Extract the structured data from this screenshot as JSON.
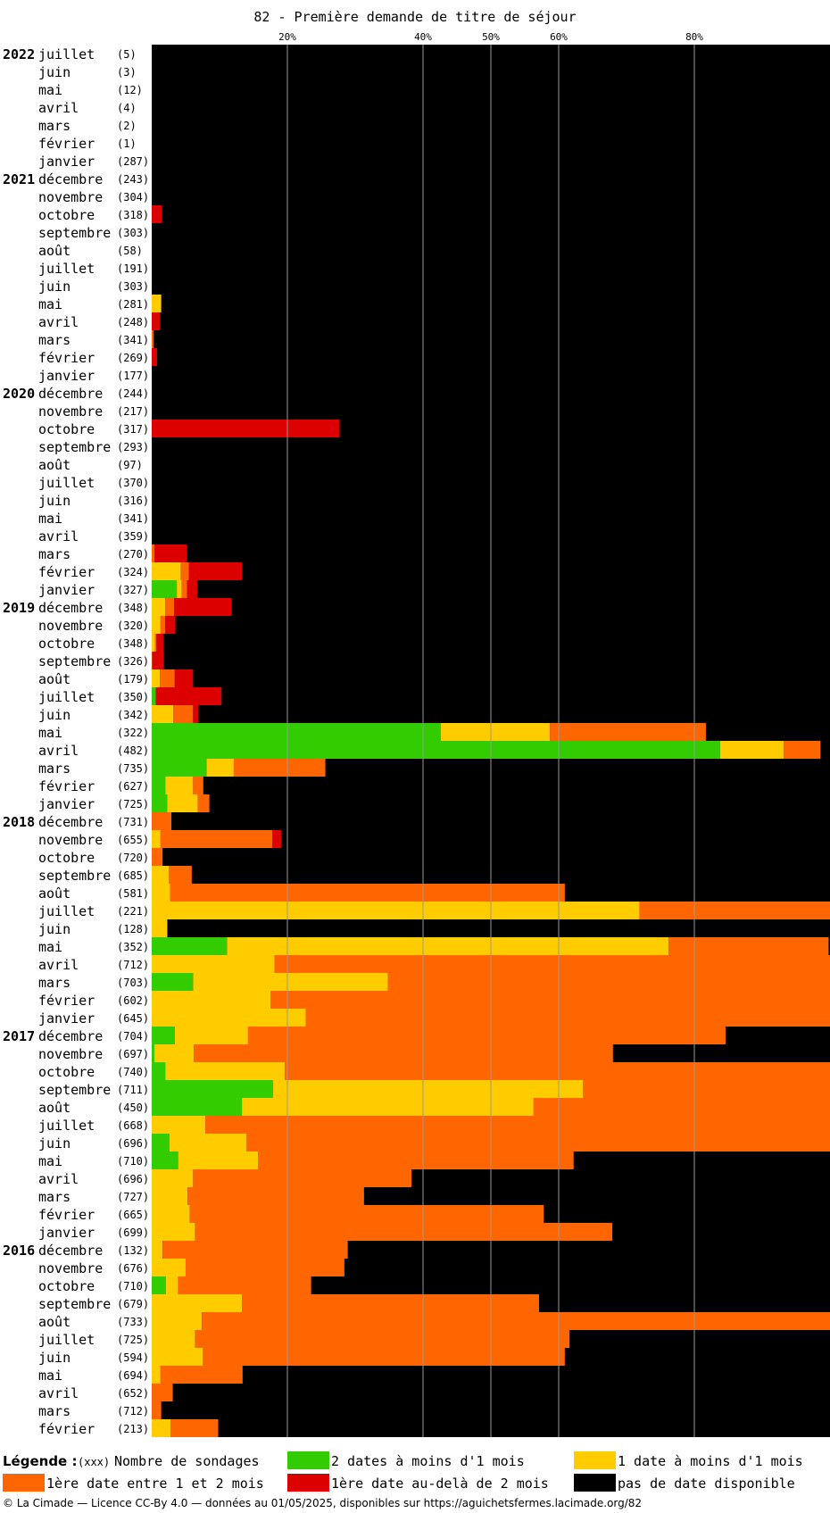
{
  "chart_data": {
    "type": "bar",
    "title": "82 - Première demande de titre de séjour",
    "x_ticks": [
      20,
      40,
      50,
      60,
      80
    ],
    "x_tick_suffix": "%",
    "xlim": [
      0,
      100
    ],
    "stack_order": [
      "green",
      "yellow",
      "orange",
      "red",
      "black"
    ],
    "colors": {
      "green": "#33cc00",
      "yellow": "#ffcc00",
      "orange": "#ff6600",
      "red": "#dd0000",
      "black": "#000000"
    },
    "legend": {
      "title": "Légende :",
      "count_marker": "(xxx)",
      "count_label": "Nombre de sondages",
      "green": "2 dates à moins d'1 mois",
      "yellow": "1 date à moins d'1 mois",
      "orange": "1ère date entre 1 et 2 mois",
      "red": "1ère date au-delà de 2 mois",
      "black": "pas de date disponible"
    },
    "rows": [
      {
        "year": "2022",
        "month": "juillet",
        "count": "(5)",
        "green": 0,
        "yellow": 0,
        "orange": 0,
        "red": 0
      },
      {
        "year": "",
        "month": "juin",
        "count": "(3)",
        "green": 0,
        "yellow": 0,
        "orange": 0,
        "red": 0
      },
      {
        "year": "",
        "month": "mai",
        "count": "(12)",
        "green": 0,
        "yellow": 0,
        "orange": 0,
        "red": 0
      },
      {
        "year": "",
        "month": "avril",
        "count": "(4)",
        "green": 0,
        "yellow": 0,
        "orange": 0,
        "red": 0
      },
      {
        "year": "",
        "month": "mars",
        "count": "(2)",
        "green": 0,
        "yellow": 0,
        "orange": 0,
        "red": 0
      },
      {
        "year": "",
        "month": "février",
        "count": "(1)",
        "green": 0,
        "yellow": 0,
        "orange": 0,
        "red": 0
      },
      {
        "year": "",
        "month": "janvier",
        "count": "(287)",
        "green": 0,
        "yellow": 0,
        "orange": 0,
        "red": 0
      },
      {
        "year": "2021",
        "month": "décembre",
        "count": "(243)",
        "green": 0,
        "yellow": 0,
        "orange": 0,
        "red": 0
      },
      {
        "year": "",
        "month": "novembre",
        "count": "(304)",
        "green": 0,
        "yellow": 0,
        "orange": 0,
        "red": 0
      },
      {
        "year": "",
        "month": "octobre",
        "count": "(318)",
        "green": 0,
        "yellow": 0,
        "orange": 0,
        "red": 1.5
      },
      {
        "year": "",
        "month": "septembre",
        "count": "(303)",
        "green": 0,
        "yellow": 0,
        "orange": 0,
        "red": 0
      },
      {
        "year": "",
        "month": "août",
        "count": "(58)",
        "green": 0,
        "yellow": 0,
        "orange": 0,
        "red": 0
      },
      {
        "year": "",
        "month": "juillet",
        "count": "(191)",
        "green": 0,
        "yellow": 0,
        "orange": 0,
        "red": 0
      },
      {
        "year": "",
        "month": "juin",
        "count": "(303)",
        "green": 0,
        "yellow": 0,
        "orange": 0,
        "red": 0
      },
      {
        "year": "",
        "month": "mai",
        "count": "(281)",
        "green": 0,
        "yellow": 1.4,
        "orange": 0,
        "red": 0
      },
      {
        "year": "",
        "month": "avril",
        "count": "(248)",
        "green": 0,
        "yellow": 0,
        "orange": 0,
        "red": 1.2
      },
      {
        "year": "",
        "month": "mars",
        "count": "(341)",
        "green": 0,
        "yellow": 0,
        "orange": 0.3,
        "red": 0
      },
      {
        "year": "",
        "month": "février",
        "count": "(269)",
        "green": 0,
        "yellow": 0,
        "orange": 0,
        "red": 0.8
      },
      {
        "year": "",
        "month": "janvier",
        "count": "(177)",
        "green": 0,
        "yellow": 0,
        "orange": 0,
        "red": 0
      },
      {
        "year": "2020",
        "month": "décembre",
        "count": "(244)",
        "green": 0,
        "yellow": 0,
        "orange": 0,
        "red": 0
      },
      {
        "year": "",
        "month": "novembre",
        "count": "(217)",
        "green": 0,
        "yellow": 0,
        "orange": 0,
        "red": 0
      },
      {
        "year": "",
        "month": "octobre",
        "count": "(317)",
        "green": 0,
        "yellow": 0,
        "orange": 0,
        "red": 27.7
      },
      {
        "year": "",
        "month": "septembre",
        "count": "(293)",
        "green": 0,
        "yellow": 0,
        "orange": 0,
        "red": 0
      },
      {
        "year": "",
        "month": "août",
        "count": "(97)",
        "green": 0,
        "yellow": 0,
        "orange": 0,
        "red": 0
      },
      {
        "year": "",
        "month": "juillet",
        "count": "(370)",
        "green": 0,
        "yellow": 0,
        "orange": 0,
        "red": 0
      },
      {
        "year": "",
        "month": "juin",
        "count": "(316)",
        "green": 0,
        "yellow": 0,
        "orange": 0,
        "red": 0
      },
      {
        "year": "",
        "month": "mai",
        "count": "(341)",
        "green": 0,
        "yellow": 0,
        "orange": 0,
        "red": 0
      },
      {
        "year": "",
        "month": "avril",
        "count": "(359)",
        "green": 0,
        "yellow": 0,
        "orange": 0,
        "red": 0
      },
      {
        "year": "",
        "month": "mars",
        "count": "(270)",
        "green": 0,
        "yellow": 0,
        "orange": 0.4,
        "red": 4.8
      },
      {
        "year": "",
        "month": "février",
        "count": "(324)",
        "green": 0,
        "yellow": 4.3,
        "orange": 1.2,
        "red": 7.8
      },
      {
        "year": "",
        "month": "janvier",
        "count": "(327)",
        "green": 3.7,
        "yellow": 0.7,
        "orange": 0.8,
        "red": 1.5
      },
      {
        "year": "2019",
        "month": "décembre",
        "count": "(348)",
        "green": 0,
        "yellow": 2.0,
        "orange": 1.3,
        "red": 8.5
      },
      {
        "year": "",
        "month": "novembre",
        "count": "(320)",
        "green": 0,
        "yellow": 1.3,
        "orange": 0.7,
        "red": 1.5
      },
      {
        "year": "",
        "month": "octobre",
        "count": "(348)",
        "green": 0,
        "yellow": 0.5,
        "orange": 0.2,
        "red": 1.0
      },
      {
        "year": "",
        "month": "septembre",
        "count": "(326)",
        "green": 0,
        "yellow": 0,
        "orange": 0.1,
        "red": 1.7
      },
      {
        "year": "",
        "month": "août",
        "count": "(179)",
        "green": 0,
        "yellow": 1.2,
        "orange": 2.2,
        "red": 2.7
      },
      {
        "year": "",
        "month": "juillet",
        "count": "(350)",
        "green": 0.6,
        "yellow": 0,
        "orange": 0,
        "red": 9.7
      },
      {
        "year": "",
        "month": "juin",
        "count": "(342)",
        "green": 0,
        "yellow": 3.2,
        "orange": 2.9,
        "red": 0.8
      },
      {
        "year": "",
        "month": "mai",
        "count": "(322)",
        "green": 42.6,
        "yellow": 16.1,
        "orange": 23.0,
        "red": 0
      },
      {
        "year": "",
        "month": "avril",
        "count": "(482)",
        "green": 83.8,
        "yellow": 9.4,
        "orange": 5.4,
        "red": 0
      },
      {
        "year": "",
        "month": "mars",
        "count": "(735)",
        "green": 8.1,
        "yellow": 4.0,
        "orange": 13.5,
        "red": 0
      },
      {
        "year": "",
        "month": "février",
        "count": "(627)",
        "green": 2.0,
        "yellow": 4.1,
        "orange": 1.5,
        "red": 0
      },
      {
        "year": "",
        "month": "janvier",
        "count": "(725)",
        "green": 2.3,
        "yellow": 4.5,
        "orange": 1.7,
        "red": 0
      },
      {
        "year": "2018",
        "month": "décembre",
        "count": "(731)",
        "green": 0,
        "yellow": 0,
        "orange": 2.9,
        "red": 0
      },
      {
        "year": "",
        "month": "novembre",
        "count": "(655)",
        "green": 0,
        "yellow": 1.3,
        "orange": 16.5,
        "red": 1.3
      },
      {
        "year": "",
        "month": "octobre",
        "count": "(720)",
        "green": 0,
        "yellow": 0,
        "orange": 1.6,
        "red": 0
      },
      {
        "year": "",
        "month": "septembre",
        "count": "(685)",
        "green": 0,
        "yellow": 2.5,
        "orange": 3.4,
        "red": 0
      },
      {
        "year": "",
        "month": "août",
        "count": "(581)",
        "green": 0,
        "yellow": 2.7,
        "orange": 58.2,
        "red": 0
      },
      {
        "year": "",
        "month": "juillet",
        "count": "(221)",
        "green": 0,
        "yellow": 71.9,
        "orange": 28.1,
        "red": 0
      },
      {
        "year": "",
        "month": "juin",
        "count": "(128)",
        "green": 0,
        "yellow": 2.3,
        "orange": 0,
        "red": 0
      },
      {
        "year": "",
        "month": "mai",
        "count": "(352)",
        "green": 11.1,
        "yellow": 65.1,
        "orange": 23.6,
        "red": 0
      },
      {
        "year": "",
        "month": "avril",
        "count": "(712)",
        "green": 0,
        "yellow": 18.1,
        "orange": 81.9,
        "red": 0
      },
      {
        "year": "",
        "month": "mars",
        "count": "(703)",
        "green": 6.1,
        "yellow": 28.7,
        "orange": 65.2,
        "red": 0
      },
      {
        "year": "",
        "month": "février",
        "count": "(602)",
        "green": 0,
        "yellow": 17.5,
        "orange": 82.5,
        "red": 0
      },
      {
        "year": "",
        "month": "janvier",
        "count": "(645)",
        "green": 0,
        "yellow": 22.7,
        "orange": 77.3,
        "red": 0
      },
      {
        "year": "2017",
        "month": "décembre",
        "count": "(704)",
        "green": 3.4,
        "yellow": 10.8,
        "orange": 70.4,
        "red": 0
      },
      {
        "year": "",
        "month": "novembre",
        "count": "(697)",
        "green": 0.4,
        "yellow": 5.8,
        "orange": 61.8,
        "red": 0
      },
      {
        "year": "",
        "month": "octobre",
        "count": "(740)",
        "green": 2.0,
        "yellow": 17.6,
        "orange": 80.4,
        "red": 0
      },
      {
        "year": "",
        "month": "septembre",
        "count": "(711)",
        "green": 17.9,
        "yellow": 45.7,
        "orange": 36.4,
        "red": 0
      },
      {
        "year": "",
        "month": "août",
        "count": "(450)",
        "green": 13.3,
        "yellow": 43.0,
        "orange": 43.7,
        "red": 0
      },
      {
        "year": "",
        "month": "juillet",
        "count": "(668)",
        "green": 0,
        "yellow": 7.9,
        "orange": 92.1,
        "red": 0
      },
      {
        "year": "",
        "month": "juin",
        "count": "(696)",
        "green": 2.6,
        "yellow": 11.4,
        "orange": 86.0,
        "red": 0
      },
      {
        "year": "",
        "month": "mai",
        "count": "(710)",
        "green": 3.9,
        "yellow": 11.8,
        "orange": 46.5,
        "red": 0
      },
      {
        "year": "",
        "month": "avril",
        "count": "(696)",
        "green": 0,
        "yellow": 6.1,
        "orange": 32.2,
        "red": 0
      },
      {
        "year": "",
        "month": "mars",
        "count": "(727)",
        "green": 0,
        "yellow": 5.3,
        "orange": 26.0,
        "red": 0
      },
      {
        "year": "",
        "month": "février",
        "count": "(665)",
        "green": 0,
        "yellow": 5.6,
        "orange": 52.2,
        "red": 0
      },
      {
        "year": "",
        "month": "janvier",
        "count": "(699)",
        "green": 0,
        "yellow": 6.4,
        "orange": 61.5,
        "red": 0
      },
      {
        "year": "2016",
        "month": "décembre",
        "count": "(132)",
        "green": 0,
        "yellow": 1.6,
        "orange": 27.3,
        "red": 0
      },
      {
        "year": "",
        "month": "novembre",
        "count": "(676)",
        "green": 0,
        "yellow": 5.0,
        "orange": 23.4,
        "red": 0
      },
      {
        "year": "",
        "month": "octobre",
        "count": "(710)",
        "green": 2.1,
        "yellow": 1.8,
        "orange": 19.6,
        "red": 0
      },
      {
        "year": "",
        "month": "septembre",
        "count": "(679)",
        "green": 0,
        "yellow": 13.3,
        "orange": 43.8,
        "red": 0
      },
      {
        "year": "",
        "month": "août",
        "count": "(733)",
        "green": 0,
        "yellow": 7.4,
        "orange": 92.6,
        "red": 0
      },
      {
        "year": "",
        "month": "juillet",
        "count": "(725)",
        "green": 0,
        "yellow": 6.4,
        "orange": 55.2,
        "red": 0
      },
      {
        "year": "",
        "month": "juin",
        "count": "(594)",
        "green": 0,
        "yellow": 7.5,
        "orange": 53.4,
        "red": 0
      },
      {
        "year": "",
        "month": "mai",
        "count": "(694)",
        "green": 0,
        "yellow": 1.3,
        "orange": 12.1,
        "red": 0
      },
      {
        "year": "",
        "month": "avril",
        "count": "(652)",
        "green": 0,
        "yellow": 0,
        "orange": 3.1,
        "red": 0
      },
      {
        "year": "",
        "month": "mars",
        "count": "(712)",
        "green": 0,
        "yellow": 0,
        "orange": 1.4,
        "red": 0
      },
      {
        "year": "",
        "month": "février",
        "count": "(213)",
        "green": 0,
        "yellow": 2.8,
        "orange": 7.0,
        "red": 0
      }
    ]
  },
  "footer": "© La Cimade — Licence CC-By 4.0 — données au 01/05/2025, disponibles sur https://aguichetsfermes.lacimade.org/82"
}
